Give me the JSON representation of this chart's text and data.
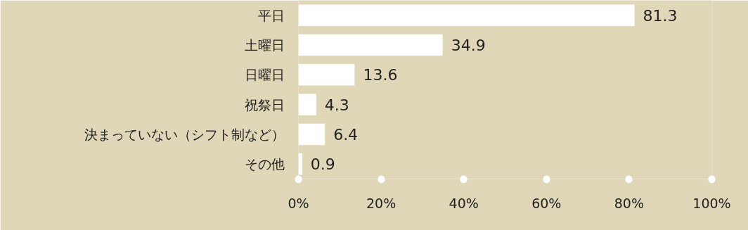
{
  "chart_data": {
    "type": "bar",
    "orientation": "horizontal",
    "categories": [
      "平日",
      "土曜日",
      "日曜日",
      "祝祭日",
      "決まっていない（シフト制など）",
      "その他"
    ],
    "values": [
      81.3,
      34.9,
      13.6,
      4.3,
      6.4,
      0.9
    ],
    "color": "#ffffff",
    "xlim": [
      0,
      100
    ],
    "xticks": [
      {
        "value": 0,
        "label": "0%"
      },
      {
        "value": 20,
        "label": "20%"
      },
      {
        "value": 40,
        "label": "40%"
      },
      {
        "value": 60,
        "label": "60%"
      },
      {
        "value": 80,
        "label": "80%"
      },
      {
        "value": 100,
        "label": "100%"
      }
    ],
    "data_labels": true
  }
}
